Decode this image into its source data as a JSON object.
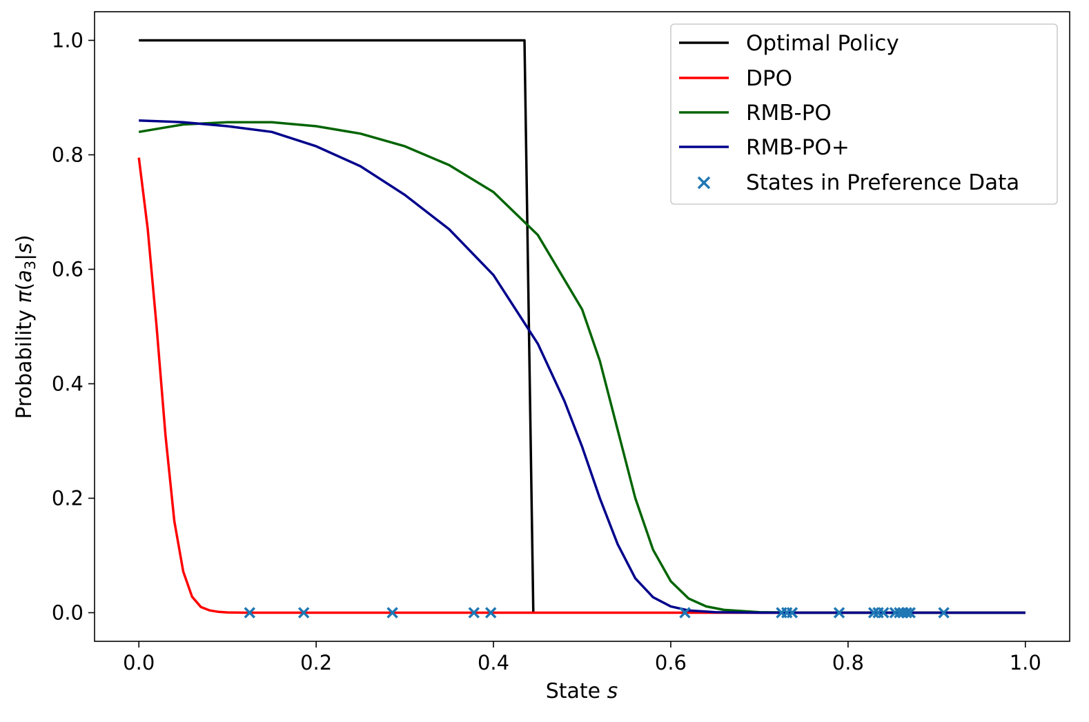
{
  "chart_data": {
    "type": "line",
    "title": "",
    "xlabel_prefix": "State ",
    "xlabel_var": "s",
    "ylabel_prefix": "Probability ",
    "ylabel_math": {
      "pi": "π",
      "open": "(",
      "a": "a",
      "sub": "3",
      "bar": "|",
      "s": "s",
      "close": ")"
    },
    "xlim": [
      -0.05,
      1.05
    ],
    "ylim": [
      -0.05,
      1.05
    ],
    "xticks": [
      0.0,
      0.2,
      0.4,
      0.6,
      0.8,
      1.0
    ],
    "xtick_labels": [
      "0.0",
      "0.2",
      "0.4",
      "0.6",
      "0.8",
      "1.0"
    ],
    "yticks": [
      0.0,
      0.2,
      0.4,
      0.6,
      0.8,
      1.0
    ],
    "ytick_labels": [
      "0.0",
      "0.2",
      "0.4",
      "0.6",
      "0.8",
      "1.0"
    ],
    "grid": false,
    "legend_position": "top-right",
    "series": [
      {
        "name": "Optimal Policy",
        "color": "#000000",
        "x": [
          0.0,
          0.435,
          0.445,
          0.445
        ],
        "y": [
          1.0,
          1.0,
          0.0,
          0.0
        ]
      },
      {
        "name": "DPO",
        "color": "#ff0000",
        "x": [
          0.0,
          0.01,
          0.02,
          0.03,
          0.04,
          0.05,
          0.06,
          0.07,
          0.08,
          0.09,
          0.1,
          0.12,
          0.15,
          0.2,
          0.4,
          0.6,
          0.8,
          1.0
        ],
        "y": [
          0.795,
          0.67,
          0.5,
          0.31,
          0.16,
          0.072,
          0.028,
          0.01,
          0.004,
          0.0015,
          0.0005,
          0.0,
          0.0,
          0.0,
          0.0,
          0.0,
          0.0,
          0.0
        ]
      },
      {
        "name": "RMB-PO",
        "color": "#006400",
        "x": [
          0.0,
          0.05,
          0.1,
          0.15,
          0.2,
          0.25,
          0.3,
          0.35,
          0.4,
          0.45,
          0.5,
          0.52,
          0.54,
          0.56,
          0.58,
          0.6,
          0.62,
          0.64,
          0.66,
          0.7,
          0.75,
          0.8,
          0.9,
          1.0
        ],
        "y": [
          0.84,
          0.853,
          0.857,
          0.857,
          0.85,
          0.837,
          0.815,
          0.782,
          0.735,
          0.66,
          0.53,
          0.44,
          0.32,
          0.2,
          0.11,
          0.055,
          0.025,
          0.011,
          0.005,
          0.001,
          0.0,
          0.0,
          0.0,
          0.0
        ]
      },
      {
        "name": "RMB-PO+",
        "color": "#00008b",
        "x": [
          0.0,
          0.05,
          0.1,
          0.15,
          0.2,
          0.25,
          0.3,
          0.35,
          0.4,
          0.45,
          0.48,
          0.5,
          0.52,
          0.54,
          0.56,
          0.58,
          0.6,
          0.62,
          0.65,
          0.7,
          0.8,
          0.9,
          1.0
        ],
        "y": [
          0.86,
          0.857,
          0.85,
          0.84,
          0.815,
          0.78,
          0.73,
          0.67,
          0.59,
          0.47,
          0.37,
          0.29,
          0.2,
          0.12,
          0.06,
          0.027,
          0.011,
          0.004,
          0.001,
          0.0,
          0.0,
          0.0,
          0.0
        ]
      }
    ],
    "scatter": {
      "name": "States in Preference Data",
      "color": "#1f77b4",
      "marker": "x",
      "x": [
        0.125,
        0.186,
        0.286,
        0.378,
        0.397,
        0.616,
        0.725,
        0.731,
        0.737,
        0.79,
        0.829,
        0.834,
        0.84,
        0.853,
        0.858,
        0.862,
        0.866,
        0.87,
        0.908
      ],
      "y": [
        0,
        0,
        0,
        0,
        0,
        0,
        0,
        0,
        0,
        0,
        0,
        0,
        0,
        0,
        0,
        0,
        0,
        0,
        0
      ]
    }
  }
}
